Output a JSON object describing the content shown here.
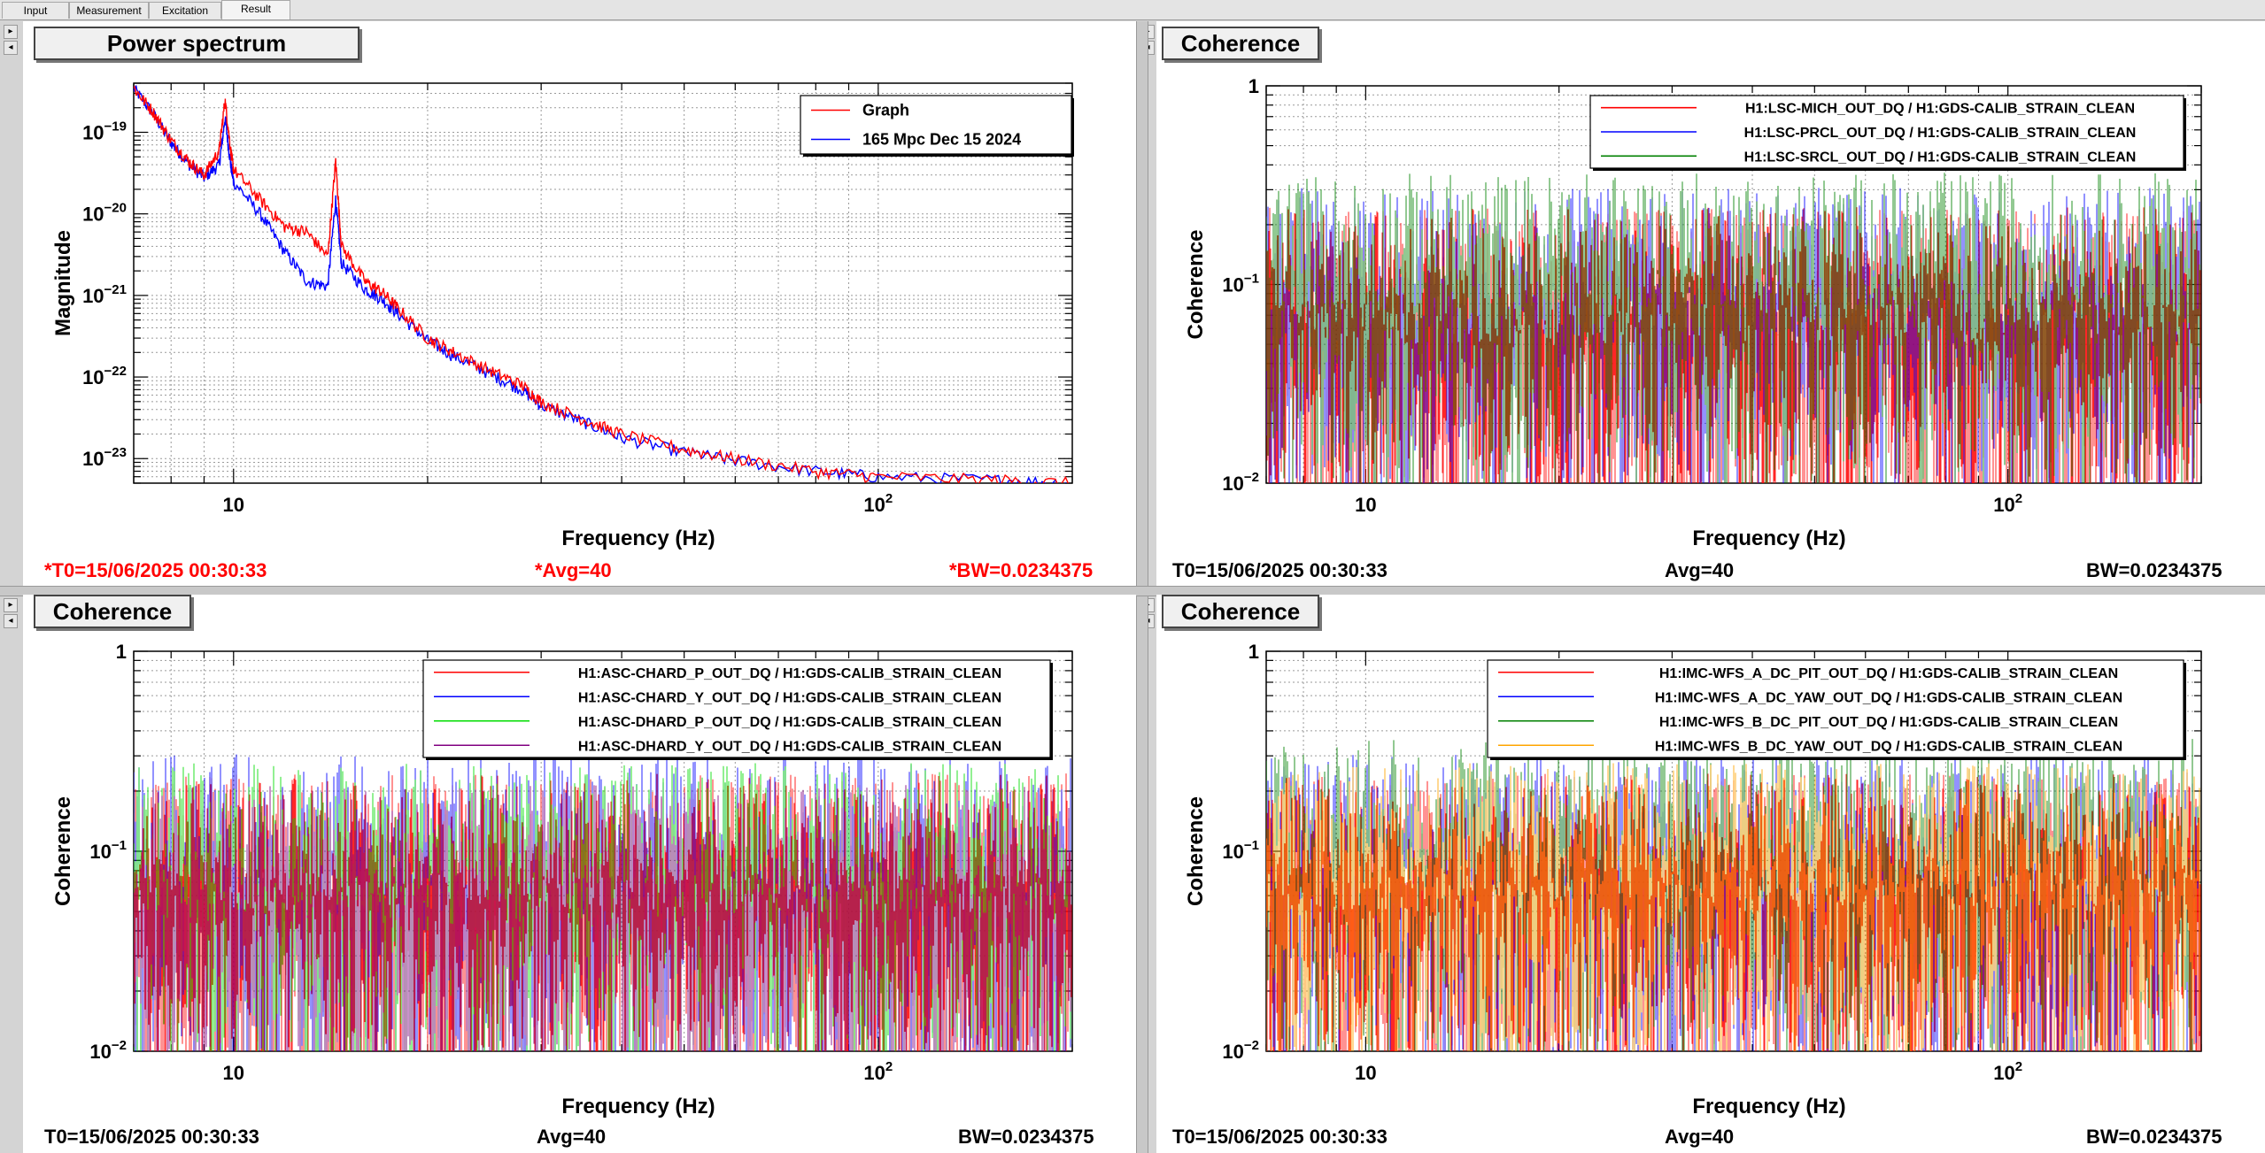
{
  "tabs": [
    "Input",
    "Measurement",
    "Excitation",
    "Result"
  ],
  "active_tab": "Result",
  "colors": {
    "red": "#ff0000",
    "blue": "#0000ff",
    "darkgreen": "#008000",
    "green": "#00dd00",
    "purple": "#800080",
    "orange": "#ffa500"
  },
  "panels": [
    {
      "title": "Power spectrum",
      "ylabel": "Magnitude",
      "xlabel": "Frequency (Hz)",
      "footer": {
        "t0": "*T0=15/06/2025 00:30:33",
        "avg": "*Avg=40",
        "bw": "*BW=0.0234375",
        "color": "#ff0000"
      }
    },
    {
      "title": "Coherence",
      "ylabel": "Coherence",
      "xlabel": "Frequency (Hz)",
      "footer": {
        "t0": "T0=15/06/2025 00:30:33",
        "avg": "Avg=40",
        "bw": "BW=0.0234375",
        "color": "#000000"
      }
    },
    {
      "title": "Coherence",
      "ylabel": "Coherence",
      "xlabel": "Frequency (Hz)",
      "footer": {
        "t0": "T0=15/06/2025 00:30:33",
        "avg": "Avg=40",
        "bw": "BW=0.0234375",
        "color": "#000000"
      }
    },
    {
      "title": "Coherence",
      "ylabel": "Coherence",
      "xlabel": "Frequency (Hz)",
      "footer": {
        "t0": "T0=15/06/2025 00:30:33",
        "avg": "Avg=40",
        "bw": "BW=0.0234375",
        "color": "#000000"
      }
    }
  ],
  "chart_data": [
    {
      "type": "line",
      "xscale": "log",
      "yscale": "log",
      "xlim": [
        7,
        200
      ],
      "ylim": [
        5e-24,
        4e-19
      ],
      "x_ticks": [
        "10",
        "10^2"
      ],
      "y_ticks": [
        "10^-19",
        "10^-20",
        "10^-21",
        "10^-22",
        "10^-23"
      ],
      "grid": true,
      "legend_position": "top-right",
      "series": [
        {
          "name": "Graph",
          "color": "#ff0000",
          "points": [
            [
              7,
              3.5e-19
            ],
            [
              7.5,
              1.8e-19
            ],
            [
              8,
              8e-20
            ],
            [
              8.5,
              4.5e-20
            ],
            [
              9,
              3e-20
            ],
            [
              9.5,
              6e-20
            ],
            [
              9.7,
              2.5e-19
            ],
            [
              9.9,
              6e-20
            ],
            [
              10,
              3.5e-20
            ],
            [
              11,
              1.5e-20
            ],
            [
              12,
              7e-21
            ],
            [
              13,
              6e-21
            ],
            [
              14,
              3e-21
            ],
            [
              14.4,
              4.5e-20
            ],
            [
              14.7,
              4e-21
            ],
            [
              16,
              1.5e-21
            ],
            [
              17,
              1.1e-21
            ],
            [
              18,
              7e-22
            ],
            [
              20,
              3e-22
            ],
            [
              22,
              2e-22
            ],
            [
              25,
              1.2e-22
            ],
            [
              28,
              8e-23
            ],
            [
              30,
              5e-23
            ],
            [
              35,
              3e-23
            ],
            [
              40,
              2e-23
            ],
            [
              50,
              1.3e-23
            ],
            [
              60,
              1e-23
            ],
            [
              80,
              7e-24
            ],
            [
              100,
              6e-24
            ],
            [
              150,
              5.5e-24
            ],
            [
              200,
              5e-24
            ]
          ]
        },
        {
          "name": "165 Mpc Dec 15 2024",
          "color": "#0000ff",
          "points": [
            [
              7,
              3.5e-19
            ],
            [
              7.5,
              1.7e-19
            ],
            [
              8,
              7.5e-20
            ],
            [
              8.5,
              4.2e-20
            ],
            [
              9,
              2.8e-20
            ],
            [
              9.5,
              4e-20
            ],
            [
              9.7,
              1.5e-19
            ],
            [
              9.9,
              4e-20
            ],
            [
              10,
              2.5e-20
            ],
            [
              11,
              1e-20
            ],
            [
              12,
              3.5e-21
            ],
            [
              13,
              1.5e-21
            ],
            [
              14,
              1.3e-21
            ],
            [
              14.4,
              1.5e-20
            ],
            [
              14.7,
              2.5e-21
            ],
            [
              16,
              1.2e-21
            ],
            [
              17,
              9e-22
            ],
            [
              18,
              6e-22
            ],
            [
              20,
              2.8e-22
            ],
            [
              22,
              1.8e-22
            ],
            [
              25,
              1.1e-22
            ],
            [
              28,
              7e-23
            ],
            [
              30,
              4.5e-23
            ],
            [
              35,
              2.8e-23
            ],
            [
              40,
              1.8e-23
            ],
            [
              50,
              1.2e-23
            ],
            [
              60,
              9.5e-24
            ],
            [
              80,
              7e-24
            ],
            [
              100,
              6e-24
            ],
            [
              150,
              5.5e-24
            ],
            [
              200,
              5e-24
            ]
          ]
        }
      ]
    },
    {
      "type": "line",
      "xscale": "log",
      "yscale": "log",
      "xlim": [
        7,
        200
      ],
      "ylim": [
        0.01,
        1
      ],
      "x_ticks": [
        "10",
        "10^2"
      ],
      "y_ticks": [
        "1",
        "10^-1",
        "10^-2"
      ],
      "grid": true,
      "legend_position": "top-right",
      "series": [
        {
          "name": "H1:LSC-MICH_OUT_DQ / H1:GDS-CALIB_STRAIN_CLEAN",
          "color": "#ff0000",
          "level": 0.08
        },
        {
          "name": "H1:LSC-PRCL_OUT_DQ / H1:GDS-CALIB_STRAIN_CLEAN",
          "color": "#0000ff",
          "level": 0.1
        },
        {
          "name": "H1:LSC-SRCL_OUT_DQ / H1:GDS-CALIB_STRAIN_CLEAN",
          "color": "#008000",
          "level": 0.12
        }
      ]
    },
    {
      "type": "line",
      "xscale": "log",
      "yscale": "log",
      "xlim": [
        7,
        200
      ],
      "ylim": [
        0.01,
        1
      ],
      "x_ticks": [
        "10",
        "10^2"
      ],
      "y_ticks": [
        "1",
        "10^-1",
        "10^-2"
      ],
      "grid": true,
      "legend_position": "top-right",
      "series": [
        {
          "name": "H1:ASC-CHARD_P_OUT_DQ / H1:GDS-CALIB_STRAIN_CLEAN",
          "color": "#ff0000",
          "level": 0.08
        },
        {
          "name": "H1:ASC-CHARD_Y_OUT_DQ / H1:GDS-CALIB_STRAIN_CLEAN",
          "color": "#0000ff",
          "level": 0.1
        },
        {
          "name": "H1:ASC-DHARD_P_OUT_DQ / H1:GDS-CALIB_STRAIN_CLEAN",
          "color": "#00dd00",
          "level": 0.09
        },
        {
          "name": "H1:ASC-DHARD_Y_OUT_DQ / H1:GDS-CALIB_STRAIN_CLEAN",
          "color": "#800080",
          "level": 0.07
        }
      ]
    },
    {
      "type": "line",
      "xscale": "log",
      "yscale": "log",
      "xlim": [
        7,
        200
      ],
      "ylim": [
        0.01,
        1
      ],
      "x_ticks": [
        "10",
        "10^2"
      ],
      "y_ticks": [
        "1",
        "10^-1",
        "10^-2"
      ],
      "grid": true,
      "legend_position": "top-right",
      "series": [
        {
          "name": "H1:IMC-WFS_A_DC_PIT_OUT_DQ / H1:GDS-CALIB_STRAIN_CLEAN",
          "color": "#ff0000",
          "level": 0.08
        },
        {
          "name": "H1:IMC-WFS_A_DC_YAW_OUT_DQ / H1:GDS-CALIB_STRAIN_CLEAN",
          "color": "#0000ff",
          "level": 0.1
        },
        {
          "name": "H1:IMC-WFS_B_DC_PIT_OUT_DQ / H1:GDS-CALIB_STRAIN_CLEAN",
          "color": "#008000",
          "level": 0.12
        },
        {
          "name": "H1:IMC-WFS_B_DC_YAW_OUT_DQ / H1:GDS-CALIB_STRAIN_CLEAN",
          "color": "#ffa500",
          "level": 0.09
        }
      ]
    }
  ]
}
